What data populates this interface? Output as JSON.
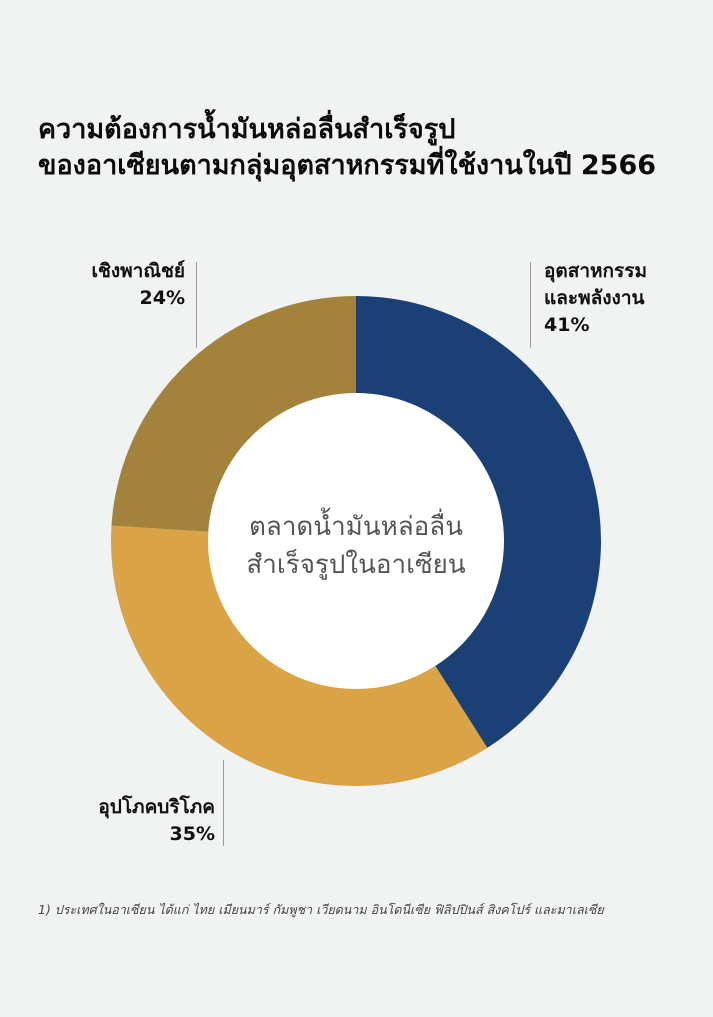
{
  "title": {
    "line1": "ความต้องการน้ำมันหล่อลื่นสำเร็จรูป",
    "line2": "ของอาเซียนตามกลุ่มอุตสาหกรรมที่ใช้งานในปี 2566"
  },
  "center_label": {
    "line1": "ตลาดน้ำมันหล่อลื่น",
    "line2": "สำเร็จรูปในอาเซียน"
  },
  "footnote": "1) ประเทศในอาเซียน ได้แก่ ไทย เมียนมาร์ กัมพูชา เวียดนาม อินโดนีเซีย ฟิลิปปินส์ สิงคโปร์ และมาเลเซีย",
  "chart_data": {
    "type": "pie",
    "variant": "donut",
    "start": "top, clockwise",
    "colors": {
      "industry": "#1b4075",
      "consumer": "#d9a346",
      "commercial": "#a3823c",
      "hole": "#ffffff"
    },
    "slices": [
      {
        "key": "industry",
        "label_line1": "อุตสาหกรรม",
        "label_line2": "และพลังงาน",
        "value": 41,
        "value_label": "41%"
      },
      {
        "key": "consumer",
        "label_line1": "อุปโภคบริโภค",
        "label_line2": "",
        "value": 35,
        "value_label": "35%"
      },
      {
        "key": "commercial",
        "label_line1": "เชิงพาณิชย์",
        "label_line2": "",
        "value": 24,
        "value_label": "24%"
      }
    ]
  }
}
